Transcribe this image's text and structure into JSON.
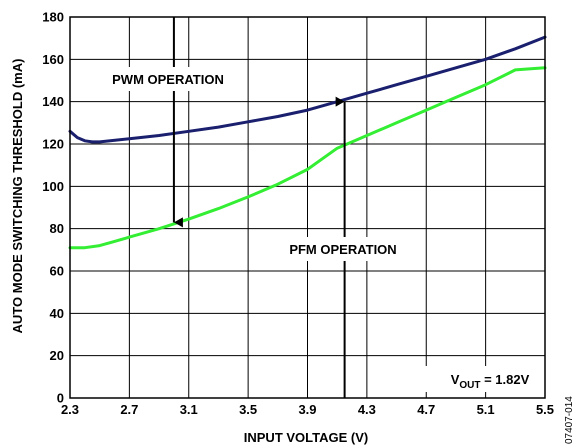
{
  "figure_id": "07407-014",
  "chart_data": {
    "type": "line",
    "xlabel": "INPUT VOLTAGE (V)",
    "ylabel": "AUTO MODE SWITCHING THRESHOLD (mA)",
    "xlim": [
      2.3,
      5.5
    ],
    "ylim": [
      0,
      180
    ],
    "xticks": [
      "2.3",
      "2.7",
      "3.1",
      "3.5",
      "3.9",
      "4.3",
      "4.7",
      "5.1",
      "5.5"
    ],
    "yticks": [
      "0",
      "20",
      "40",
      "60",
      "80",
      "100",
      "120",
      "140",
      "160",
      "180"
    ],
    "grid": true,
    "series": [
      {
        "color": "#1a1f6e",
        "x": [
          2.3,
          2.35,
          2.4,
          2.45,
          2.5,
          2.7,
          2.9,
          3.1,
          3.3,
          3.5,
          3.7,
          3.9,
          4.1,
          4.3,
          4.5,
          4.7,
          4.9,
          5.1,
          5.3,
          5.5
        ],
        "y": [
          126,
          123,
          121.5,
          121,
          121,
          122.5,
          124,
          126,
          128,
          130.5,
          133,
          136,
          140,
          144,
          148,
          152,
          156,
          160,
          165,
          170.5
        ]
      },
      {
        "color": "#33ee33",
        "x": [
          2.3,
          2.4,
          2.5,
          2.6,
          2.7,
          2.9,
          3.1,
          3.3,
          3.5,
          3.7,
          3.9,
          4.0,
          4.1,
          4.3,
          4.5,
          4.7,
          4.9,
          5.1,
          5.3,
          5.5
        ],
        "y": [
          71,
          71,
          72,
          74,
          76,
          80,
          84.5,
          89.5,
          95,
          101,
          108,
          113,
          118,
          124,
          130,
          136,
          142,
          148,
          155,
          156
        ]
      }
    ],
    "annotations": {
      "pwm": {
        "text": "PWM OPERATION",
        "arrow_x": 3.0,
        "arrow_from": 180,
        "arrow_to": 83
      },
      "pfm": {
        "text": "PFM OPERATION",
        "arrow_x": 4.15,
        "arrow_from": 0,
        "arrow_to": 140
      },
      "vout": {
        "prefix": "V",
        "sub": "OUT",
        "suffix": " = 1.82V"
      }
    }
  }
}
